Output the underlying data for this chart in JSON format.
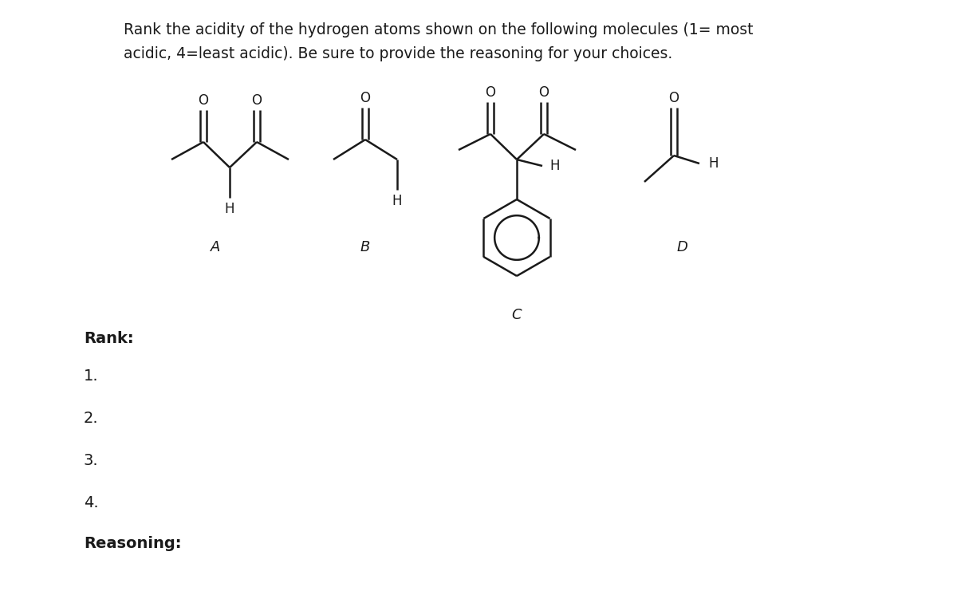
{
  "title_line1": "Rank the acidity of the hydrogen atoms shown on the following molecules (1= most",
  "title_line2": "acidic, 4=least acidic). Be sure to provide the reasoning for your choices.",
  "labels": [
    "A",
    "B",
    "C",
    "D"
  ],
  "rank_label": "Rank:",
  "rank_items": [
    "1.",
    "2.",
    "3.",
    "4."
  ],
  "reasoning_label": "Reasoning:",
  "bg_color": "#ffffff",
  "text_color": "#1a1a1a",
  "line_color": "#1a1a1a",
  "font_size_title": 13.5,
  "font_size_label": 13,
  "font_size_rank": 14,
  "font_size_bold": 14,
  "font_size_atom": 12
}
